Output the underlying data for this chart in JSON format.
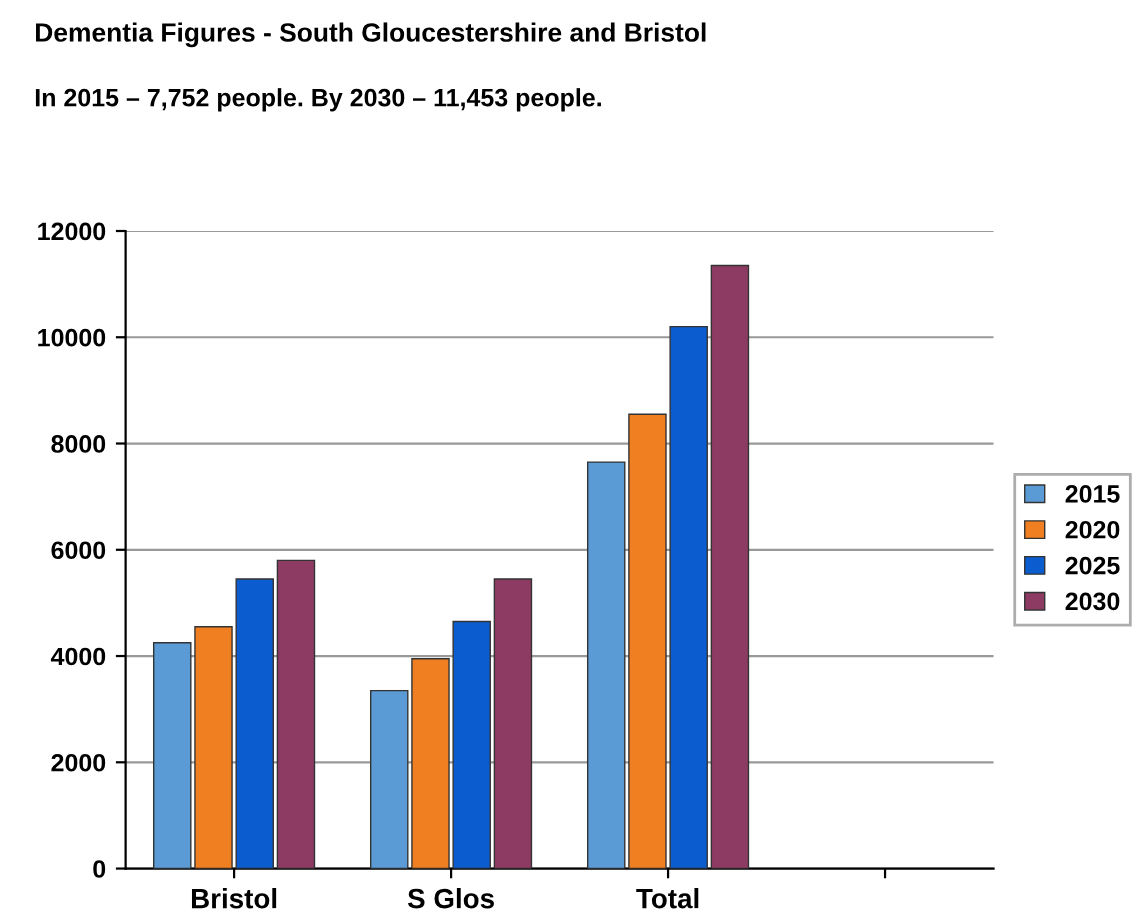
{
  "chart_data": {
    "type": "bar",
    "title": "Dementia Figures - South Gloucestershire and Bristol",
    "subtitle": "In 2015 – 7,752 people. By 2030 – 11,453 people.",
    "categories": [
      "Bristol",
      "S Glos",
      "Total",
      null
    ],
    "series": [
      {
        "name": "2015",
        "color": "#5b9bd5",
        "values": [
          4250,
          3350,
          7650,
          null
        ]
      },
      {
        "name": "2020",
        "color": "#f07f22",
        "values": [
          4550,
          3950,
          8550,
          null
        ]
      },
      {
        "name": "2025",
        "color": "#0b5ccf",
        "values": [
          5450,
          4650,
          10200,
          null
        ]
      },
      {
        "name": "2030",
        "color": "#8e3b63",
        "values": [
          5800,
          5450,
          11350,
          null
        ]
      }
    ],
    "ylim": [
      0,
      12000
    ],
    "yticks": [
      0,
      2000,
      4000,
      6000,
      8000,
      10000,
      12000
    ],
    "grid": "y",
    "legend": "right"
  }
}
